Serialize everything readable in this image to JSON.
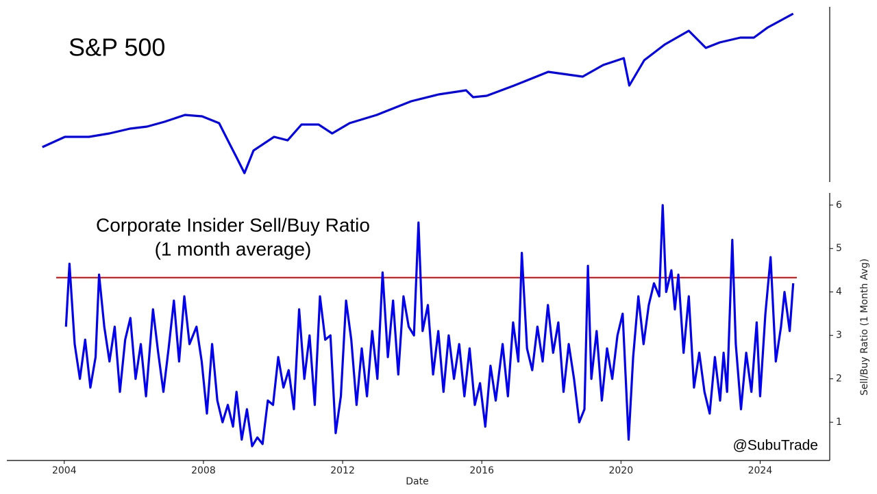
{
  "chart_data": [
    {
      "type": "line",
      "title": "S&P 500",
      "log_scale": true,
      "color": "#0000ee",
      "xlim": [
        2002.35,
        2026.0
      ],
      "ylim": [
        510,
        6630
      ],
      "x": [
        2003.37,
        2004.02,
        2004.71,
        2005.3,
        2005.89,
        2006.38,
        2006.88,
        2007.47,
        2007.96,
        2008.45,
        2008.75,
        2008.95,
        2009.18,
        2009.44,
        2010.03,
        2010.42,
        2010.82,
        2011.31,
        2011.7,
        2012.2,
        2012.98,
        2013.97,
        2014.76,
        2015.55,
        2015.75,
        2016.14,
        2016.93,
        2017.91,
        2018.9,
        2019.49,
        2020.08,
        2020.24,
        2020.67,
        2021.26,
        2021.95,
        2022.44,
        2022.84,
        2023.43,
        2023.82,
        2024.22,
        2024.95
      ],
      "values": [
        850,
        988,
        988,
        1039,
        1114,
        1148,
        1232,
        1361,
        1335,
        1207,
        894,
        732,
        581,
        809,
        988,
        939,
        1183,
        1183,
        1039,
        1207,
        1361,
        1663,
        1838,
        1953,
        1766,
        1802,
        2094,
        2560,
        2386,
        2829,
        3128,
        2094,
        3035,
        3822,
        4670,
        3635,
        3937,
        4224,
        4224,
        4906,
        6000
      ]
    },
    {
      "type": "line",
      "title": "Corporate Insider Sell/Buy Ratio",
      "subtitle": "(1 month average)",
      "x_label": "Date",
      "y_label": "Sell/Buy Ratio (1 Month Avg)",
      "annotation": "@SubuTrade",
      "color": "#0000ee",
      "reference_line": {
        "value": 4.33,
        "color": "#e00000"
      },
      "xlim": [
        2002.35,
        2026.0
      ],
      "ylim": [
        0.12,
        6.28
      ],
      "xticks": [
        2004,
        2008,
        2012,
        2016,
        2020,
        2024
      ],
      "yticks": [
        1,
        2,
        3,
        4,
        5,
        6
      ],
      "x": [
        2004.05,
        2004.15,
        2004.3,
        2004.45,
        2004.6,
        2004.75,
        2004.9,
        2005.0,
        2005.15,
        2005.3,
        2005.45,
        2005.6,
        2005.75,
        2005.9,
        2006.05,
        2006.2,
        2006.35,
        2006.55,
        2006.7,
        2006.85,
        2007.0,
        2007.15,
        2007.3,
        2007.45,
        2007.6,
        2007.8,
        2007.95,
        2008.1,
        2008.25,
        2008.4,
        2008.55,
        2008.7,
        2008.85,
        2008.95,
        2009.1,
        2009.25,
        2009.4,
        2009.55,
        2009.7,
        2009.85,
        2010.0,
        2010.15,
        2010.3,
        2010.45,
        2010.6,
        2010.75,
        2010.9,
        2011.05,
        2011.2,
        2011.35,
        2011.5,
        2011.65,
        2011.8,
        2011.95,
        2012.1,
        2012.25,
        2012.4,
        2012.55,
        2012.7,
        2012.85,
        2013.0,
        2013.15,
        2013.3,
        2013.45,
        2013.6,
        2013.75,
        2013.9,
        2014.05,
        2014.18,
        2014.3,
        2014.45,
        2014.6,
        2014.75,
        2014.9,
        2015.05,
        2015.2,
        2015.35,
        2015.5,
        2015.65,
        2015.8,
        2015.95,
        2016.1,
        2016.25,
        2016.4,
        2016.6,
        2016.75,
        2016.9,
        2017.05,
        2017.15,
        2017.3,
        2017.45,
        2017.6,
        2017.75,
        2017.9,
        2018.05,
        2018.2,
        2018.35,
        2018.5,
        2018.65,
        2018.8,
        2018.95,
        2019.05,
        2019.15,
        2019.3,
        2019.45,
        2019.6,
        2019.75,
        2019.9,
        2020.05,
        2020.22,
        2020.35,
        2020.5,
        2020.65,
        2020.8,
        2020.95,
        2021.1,
        2021.2,
        2021.3,
        2021.45,
        2021.55,
        2021.65,
        2021.8,
        2021.95,
        2022.1,
        2022.25,
        2022.4,
        2022.55,
        2022.7,
        2022.85,
        2022.95,
        2023.05,
        2023.2,
        2023.3,
        2023.45,
        2023.6,
        2023.75,
        2023.9,
        2024.0,
        2024.15,
        2024.3,
        2024.45,
        2024.6,
        2024.7,
        2024.85,
        2024.95
      ],
      "values": [
        3.2,
        4.65,
        2.8,
        2.0,
        2.9,
        1.8,
        2.5,
        4.4,
        3.2,
        2.4,
        3.2,
        1.7,
        2.9,
        3.4,
        2.0,
        2.8,
        1.6,
        3.6,
        2.6,
        1.7,
        2.7,
        3.8,
        2.4,
        3.9,
        2.8,
        3.2,
        2.4,
        1.2,
        2.8,
        1.5,
        1.0,
        1.4,
        0.9,
        1.7,
        0.6,
        1.3,
        0.45,
        0.65,
        0.5,
        1.5,
        1.4,
        2.5,
        1.8,
        2.2,
        1.3,
        3.6,
        2.0,
        3.0,
        1.4,
        3.9,
        2.9,
        3.0,
        0.75,
        1.6,
        3.8,
        2.9,
        1.4,
        2.7,
        1.6,
        3.1,
        2.0,
        4.45,
        2.5,
        3.8,
        2.1,
        3.9,
        3.2,
        3.0,
        5.6,
        3.1,
        3.7,
        2.1,
        3.1,
        1.7,
        3.0,
        2.0,
        2.8,
        1.6,
        2.7,
        1.4,
        1.9,
        0.9,
        2.3,
        1.5,
        2.8,
        1.6,
        3.3,
        2.4,
        4.9,
        2.7,
        2.2,
        3.2,
        2.4,
        3.7,
        2.6,
        3.3,
        1.7,
        2.8,
        2.0,
        1.0,
        1.3,
        4.6,
        2.0,
        3.1,
        1.5,
        2.7,
        2.0,
        3.0,
        3.5,
        0.6,
        2.5,
        3.9,
        2.8,
        3.7,
        4.2,
        3.9,
        6.0,
        4.0,
        4.5,
        3.6,
        4.4,
        2.6,
        3.9,
        1.8,
        2.6,
        1.7,
        1.2,
        2.5,
        1.5,
        2.6,
        1.7,
        5.2,
        2.8,
        1.3,
        2.6,
        1.7,
        3.3,
        1.6,
        3.5,
        4.8,
        2.4,
        3.2,
        4.0,
        3.1,
        4.2
      ]
    }
  ]
}
